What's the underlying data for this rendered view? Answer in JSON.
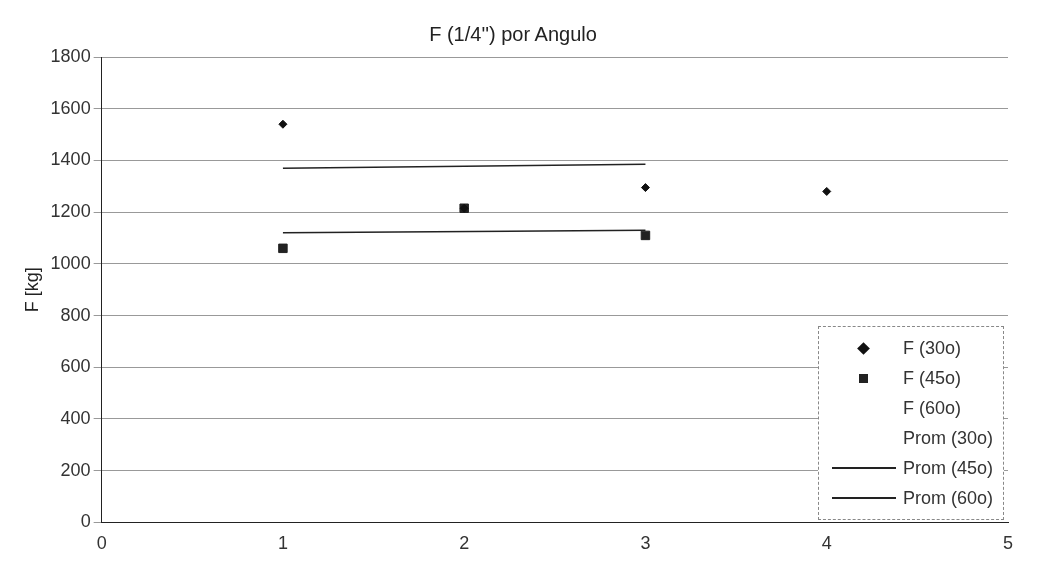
{
  "chart_data": {
    "type": "scatter",
    "title": "F (1/4'') por Angulo",
    "ylabel": "F [kg]",
    "xlim": [
      0,
      5
    ],
    "xticks": [
      0,
      1,
      2,
      3,
      4,
      5
    ],
    "ylim": [
      0,
      1800
    ],
    "yticks": [
      0,
      200,
      400,
      600,
      800,
      1000,
      1200,
      1400,
      1600,
      1800
    ],
    "grid": "y",
    "legend": "bottom right",
    "series": [
      {
        "name": "F (30o)",
        "marker": "diamond",
        "color": "#111111",
        "x": [
          1,
          2,
          3,
          4
        ],
        "values": [
          1540,
          1215,
          1295,
          1280
        ]
      },
      {
        "name": "F (45o)",
        "marker": "square",
        "color": "#222222",
        "x": [
          1,
          2,
          3
        ],
        "values": [
          1060,
          1215,
          1110
        ]
      },
      {
        "name": "F (60o)",
        "marker": "none"
      },
      {
        "name": "Prom (30o)",
        "type": "line",
        "marker": "none"
      },
      {
        "name": "Prom (45o)",
        "type": "line",
        "marker": "none",
        "color": "#222222",
        "line_style": "solid",
        "x": [
          1,
          3
        ],
        "values": [
          1120,
          1130
        ]
      },
      {
        "name": "Prom (60o)",
        "type": "line",
        "marker": "none",
        "color": "#222222",
        "line_style": "solid",
        "x": [
          1,
          3
        ],
        "values": [
          1370,
          1385
        ]
      }
    ]
  }
}
